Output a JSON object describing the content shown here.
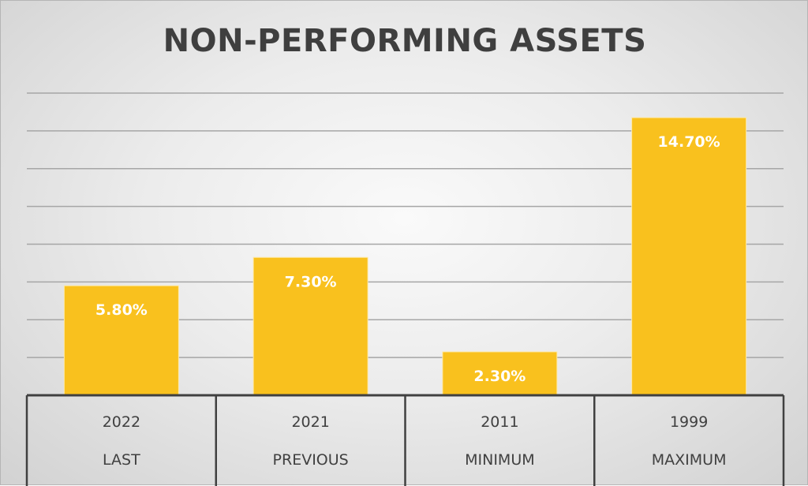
{
  "chart_data": {
    "type": "bar",
    "title": "NON-PERFORMING ASSETS",
    "xlabel": "",
    "ylabel": "",
    "categories": [
      {
        "year": "2022",
        "label": "LAST"
      },
      {
        "year": "2021",
        "label": "PREVIOUS"
      },
      {
        "year": "2011",
        "label": "MINIMUM"
      },
      {
        "year": "1999",
        "label": "MAXIMUM"
      }
    ],
    "values": [
      5.8,
      7.3,
      2.3,
      14.7
    ],
    "data_labels": [
      "5.80%",
      "7.30%",
      "2.30%",
      "14.70%"
    ],
    "ylim": [
      0,
      16
    ],
    "y_unit": "%",
    "grid": true,
    "legend": "none",
    "bar_color": "#F9C11E",
    "grid_color": "#A6A6A6",
    "axis_color": "#404040"
  }
}
